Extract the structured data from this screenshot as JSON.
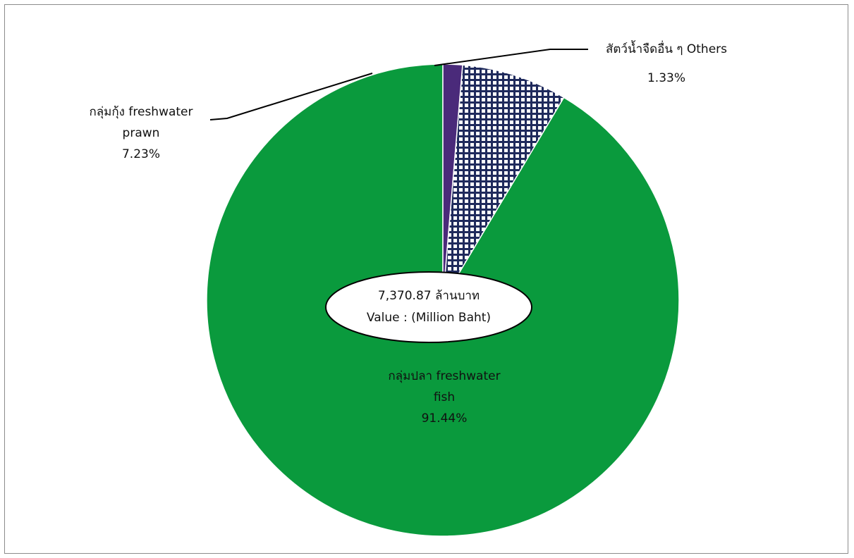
{
  "chart_data": {
    "type": "pie",
    "slices": [
      {
        "label": "กลุ่มปลา freshwater fish",
        "label_lines": [
          "กลุ่มปลา freshwater",
          "fish"
        ],
        "value": 91.44,
        "percent_label": "91.44%",
        "color": "#0a9a3d",
        "fill": "solid"
      },
      {
        "label": "กลุ่มกุ้ง freshwater prawn",
        "label_lines": [
          "กลุ่มกุ้ง freshwater",
          "prawn"
        ],
        "value": 7.23,
        "percent_label": "7.23%",
        "color": "#1f2a5c",
        "fill": "checkered"
      },
      {
        "label": "สัตว์น้ำจืดอื่น ๆ Others",
        "label_lines": [
          "สัตว์น้ำจืดอื่น ๆ Others"
        ],
        "value": 1.33,
        "percent_label": "1.33%",
        "color": "#4a2a7a",
        "fill": "solid"
      }
    ],
    "center_note": {
      "value": "7,370.87  ล้านบาท",
      "unit": "Value : (Million Baht)"
    },
    "legend": "none",
    "start_angle": "12 o'clock, counterclockwise"
  }
}
